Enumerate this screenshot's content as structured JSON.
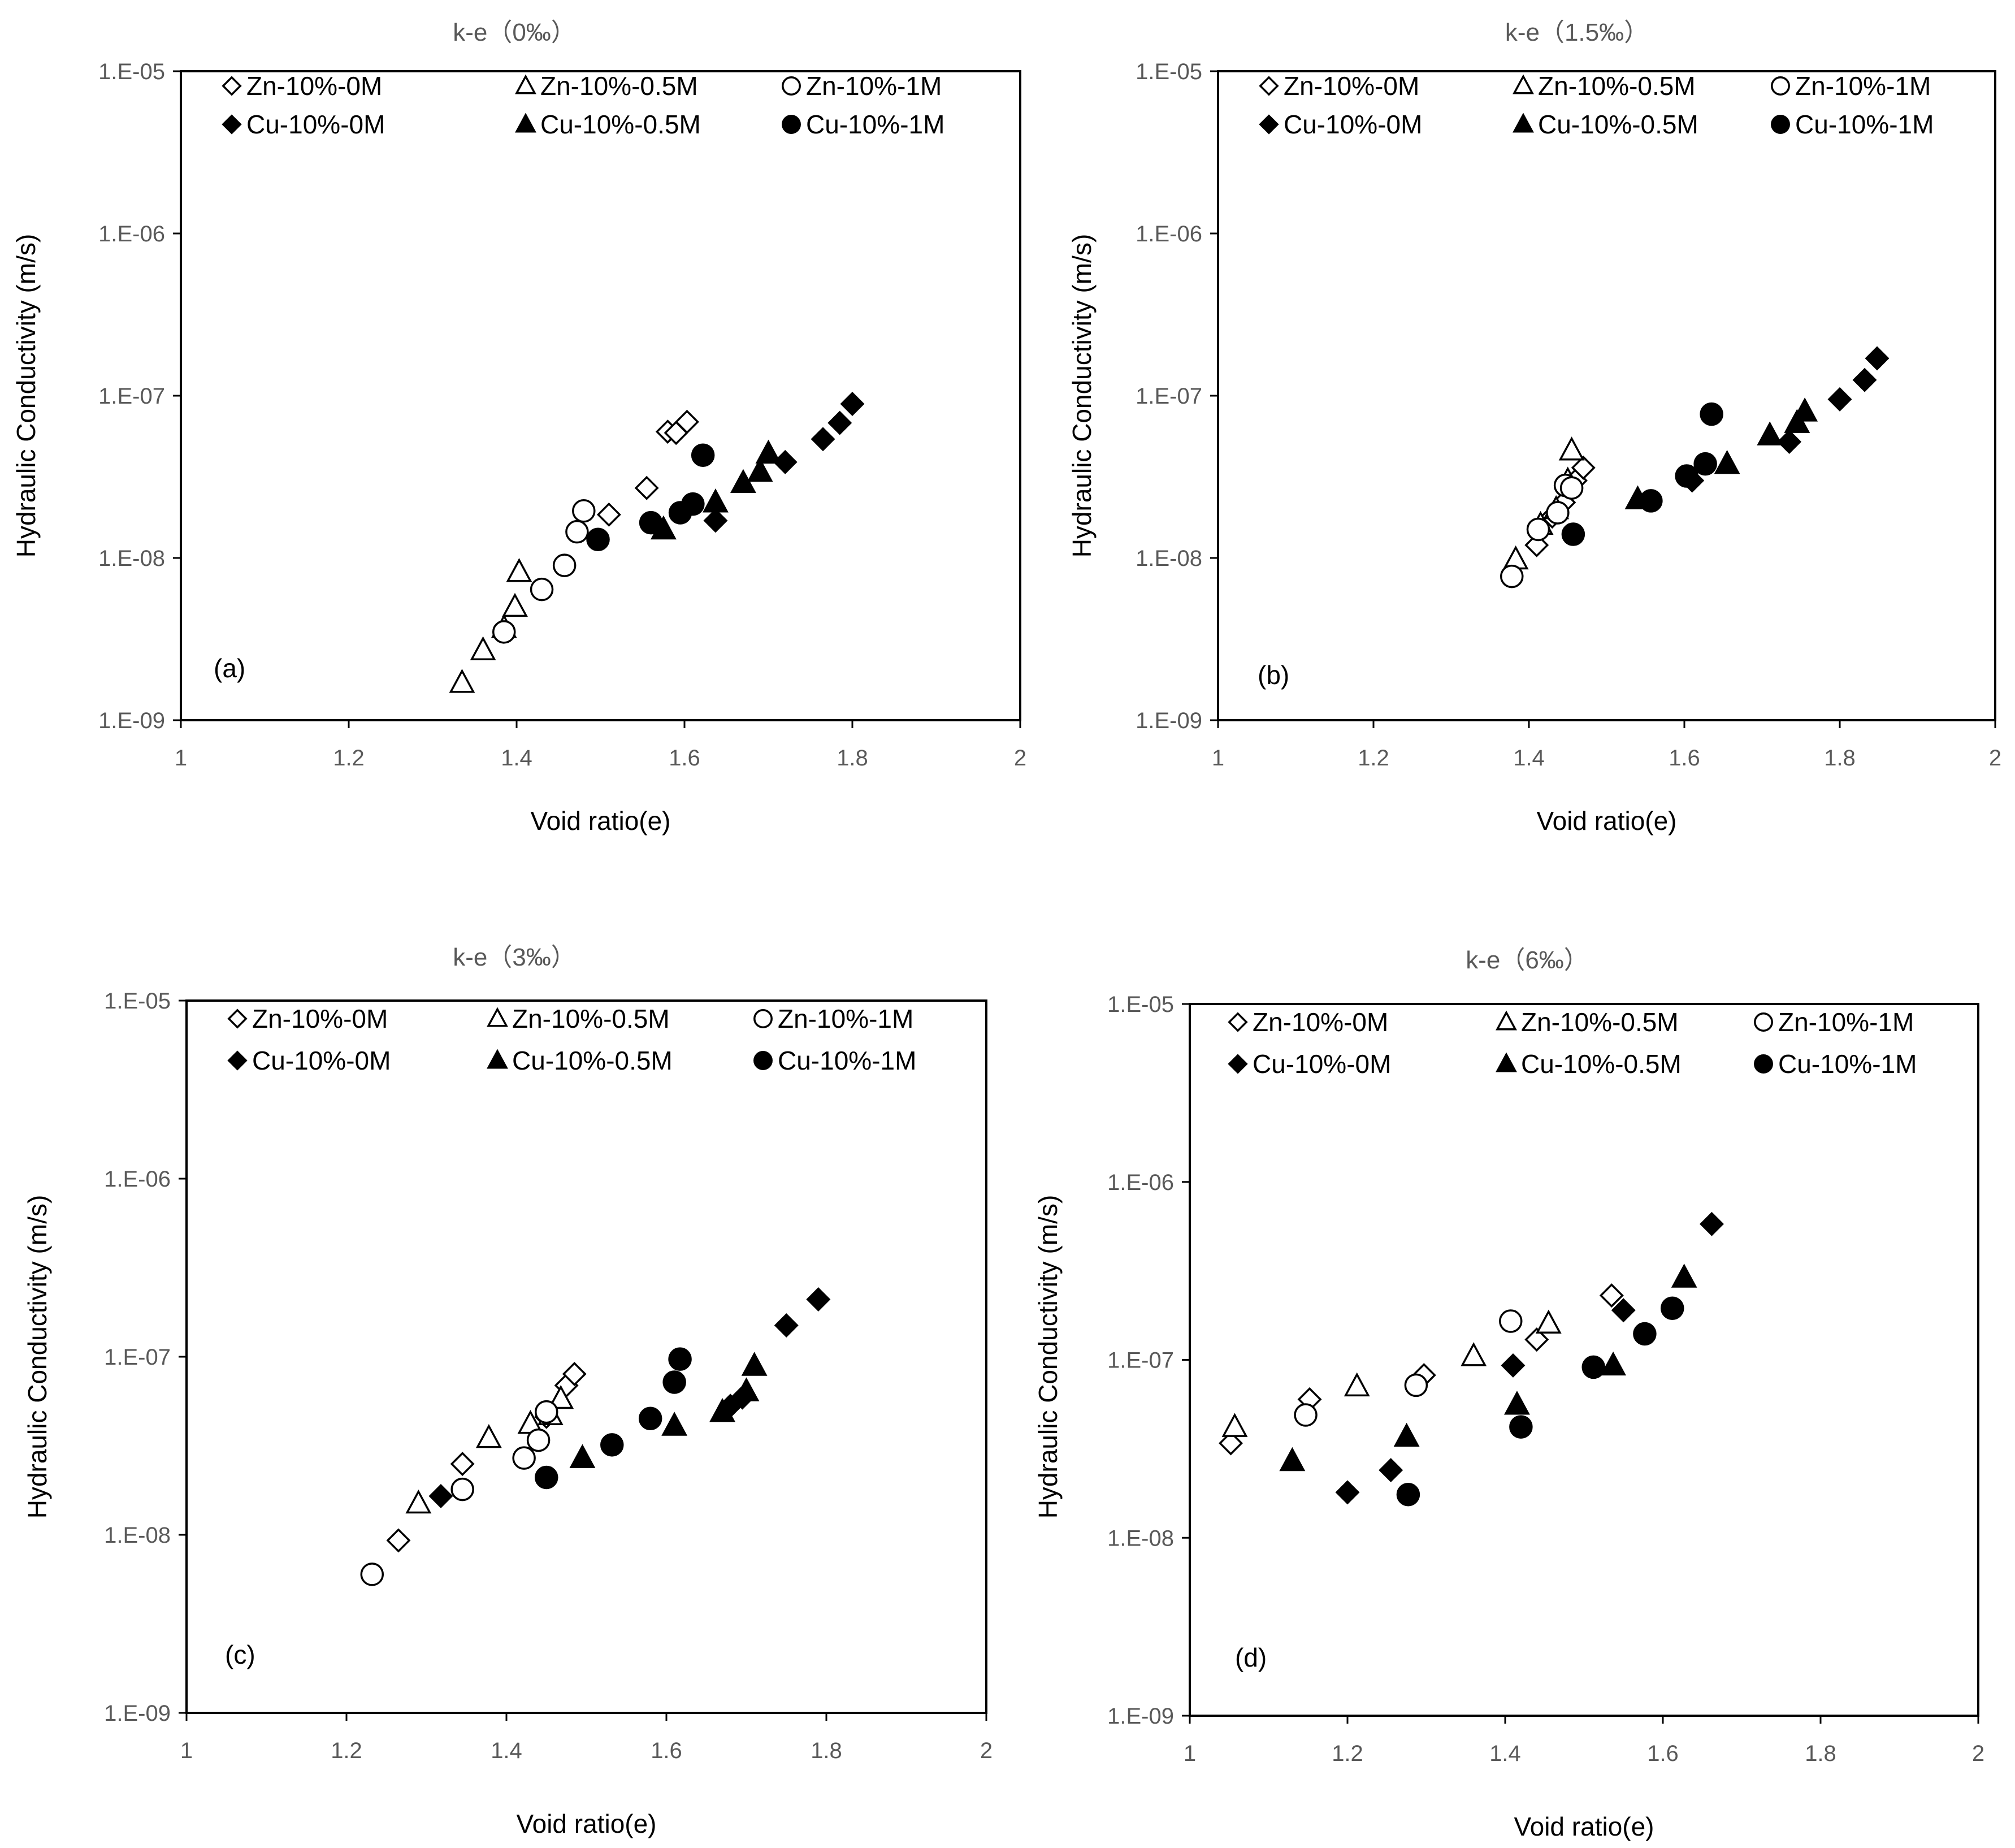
{
  "chart_data": [
    {
      "type": "scatter",
      "title": "k-e（0‰）",
      "panel_label": "(a)",
      "xlabel": "Void ratio(e)",
      "ylabel": "Hydraulic Conductivity (m/s)",
      "x_scale": "linear",
      "y_scale": "log",
      "xlim": [
        1,
        2
      ],
      "ylim": [
        1e-09,
        1e-05
      ],
      "x_ticks": [
        "1",
        "1.2",
        "1.4",
        "1.6",
        "1.8",
        "2"
      ],
      "y_ticks": [
        "1.E-09",
        "1.E-08",
        "1.E-07",
        "1.E-06",
        "1.E-05"
      ],
      "legend_position": "top",
      "series": [
        {
          "name": "Zn-10%-0M",
          "marker": "diamond-open",
          "points": [
            [
              1.51,
              1.85e-08
            ],
            [
              1.555,
              2.7e-08
            ],
            [
              1.58,
              6e-08
            ],
            [
              1.59,
              5.9e-08
            ],
            [
              1.603,
              6.9e-08
            ]
          ]
        },
        {
          "name": "Zn-10%-0.5M",
          "marker": "triangle-open",
          "points": [
            [
              1.335,
              1.7e-09
            ],
            [
              1.36,
              2.7e-09
            ],
            [
              1.385,
              3.7e-09
            ],
            [
              1.398,
              5e-09
            ],
            [
              1.403,
              8.2e-09
            ]
          ]
        },
        {
          "name": "Zn-10%-1M",
          "marker": "circle-open",
          "points": [
            [
              1.385,
              3.5e-09
            ],
            [
              1.43,
              6.4e-09
            ],
            [
              1.457,
              9e-09
            ],
            [
              1.472,
              1.45e-08
            ],
            [
              1.48,
              1.95e-08
            ]
          ]
        },
        {
          "name": "Cu-10%-0M",
          "marker": "diamond-filled",
          "points": [
            [
              1.637,
              1.7e-08
            ],
            [
              1.72,
              3.9e-08
            ],
            [
              1.765,
              5.4e-08
            ],
            [
              1.785,
              6.8e-08
            ],
            [
              1.8,
              8.9e-08
            ]
          ]
        },
        {
          "name": "Cu-10%-0.5M",
          "marker": "triangle-filled",
          "points": [
            [
              1.575,
              1.5e-08
            ],
            [
              1.637,
              2.2e-08
            ],
            [
              1.67,
              2.9e-08
            ],
            [
              1.69,
              3.4e-08
            ],
            [
              1.7,
              4.4e-08
            ]
          ]
        },
        {
          "name": "Cu-10%-1M",
          "marker": "circle-filled",
          "points": [
            [
              1.497,
              1.3e-08
            ],
            [
              1.56,
              1.65e-08
            ],
            [
              1.595,
              1.9e-08
            ],
            [
              1.61,
              2.15e-08
            ],
            [
              1.622,
              4.3e-08
            ]
          ]
        }
      ]
    },
    {
      "type": "scatter",
      "title": "k-e（1.5‰）",
      "panel_label": "(b)",
      "xlabel": "Void ratio(e)",
      "ylabel": "Hydraulic Conductivity (m/s)",
      "x_scale": "linear",
      "y_scale": "log",
      "xlim": [
        1,
        2
      ],
      "ylim": [
        1e-09,
        1e-05
      ],
      "x_ticks": [
        "1",
        "1.2",
        "1.4",
        "1.6",
        "1.8",
        "2"
      ],
      "y_ticks": [
        "1.E-09",
        "1.E-08",
        "1.E-07",
        "1.E-06",
        "1.E-05"
      ],
      "legend_position": "top",
      "series": [
        {
          "name": "Zn-10%-0M",
          "marker": "diamond-open",
          "points": [
            [
              1.41,
              1.2e-08
            ],
            [
              1.43,
              1.8e-08
            ],
            [
              1.445,
              2.2e-08
            ],
            [
              1.46,
              3e-08
            ],
            [
              1.47,
              3.6e-08
            ]
          ]
        },
        {
          "name": "Zn-10%-0.5M",
          "marker": "triangle-open",
          "points": [
            [
              1.383,
              9.8e-09
            ],
            [
              1.415,
              1.6e-08
            ],
            [
              1.435,
              2e-08
            ],
            [
              1.45,
              3e-08
            ],
            [
              1.455,
              4.6e-08
            ]
          ]
        },
        {
          "name": "Zn-10%-1M",
          "marker": "circle-open",
          "points": [
            [
              1.378,
              7.7e-09
            ],
            [
              1.412,
              1.5e-08
            ],
            [
              1.437,
              1.9e-08
            ],
            [
              1.447,
              2.8e-08
            ],
            [
              1.455,
              2.7e-08
            ]
          ]
        },
        {
          "name": "Cu-10%-0M",
          "marker": "diamond-filled",
          "points": [
            [
              1.61,
              3e-08
            ],
            [
              1.735,
              5.2e-08
            ],
            [
              1.8,
              9.5e-08
            ],
            [
              1.832,
              1.25e-07
            ],
            [
              1.848,
              1.7e-07
            ]
          ]
        },
        {
          "name": "Cu-10%-0.5M",
          "marker": "triangle-filled",
          "points": [
            [
              1.54,
              2.3e-08
            ],
            [
              1.655,
              3.8e-08
            ],
            [
              1.71,
              5.7e-08
            ],
            [
              1.745,
              6.8e-08
            ],
            [
              1.755,
              8e-08
            ]
          ]
        },
        {
          "name": "Cu-10%-1M",
          "marker": "circle-filled",
          "points": [
            [
              1.457,
              1.4e-08
            ],
            [
              1.557,
              2.25e-08
            ],
            [
              1.603,
              3.2e-08
            ],
            [
              1.627,
              3.8e-08
            ],
            [
              1.635,
              7.7e-08
            ]
          ]
        }
      ]
    },
    {
      "type": "scatter",
      "title": "k-e（3‰）",
      "panel_label": "(c)",
      "xlabel": "Void ratio(e)",
      "ylabel": "Hydraulic Conductivity (m/s)",
      "x_scale": "linear",
      "y_scale": "log",
      "xlim": [
        1,
        2
      ],
      "ylim": [
        1e-09,
        1e-05
      ],
      "x_ticks": [
        "1",
        "1.2",
        "1.4",
        "1.6",
        "1.8",
        "2"
      ],
      "y_ticks": [
        "1.E-09",
        "1.E-08",
        "1.E-07",
        "1.E-06",
        "1.E-05"
      ],
      "legend_position": "top",
      "series": [
        {
          "name": "Zn-10%-0M",
          "marker": "diamond-open",
          "points": [
            [
              1.265,
              9.3e-09
            ],
            [
              1.345,
              2.5e-08
            ],
            [
              1.45,
              4.6e-08
            ],
            [
              1.475,
              6.9e-08
            ],
            [
              1.485,
              8e-08
            ]
          ]
        },
        {
          "name": "Zn-10%-0.5M",
          "marker": "triangle-open",
          "points": [
            [
              1.29,
              1.5e-08
            ],
            [
              1.378,
              3.5e-08
            ],
            [
              1.43,
              4.2e-08
            ],
            [
              1.455,
              4.7e-08
            ],
            [
              1.468,
              5.8e-08
            ]
          ]
        },
        {
          "name": "Zn-10%-1M",
          "marker": "circle-open",
          "points": [
            [
              1.232,
              6e-09
            ],
            [
              1.345,
              1.8e-08
            ],
            [
              1.422,
              2.7e-08
            ],
            [
              1.44,
              3.4e-08
            ],
            [
              1.45,
              4.9e-08
            ]
          ]
        },
        {
          "name": "Cu-10%-0M",
          "marker": "diamond-filled",
          "points": [
            [
              1.318,
              1.65e-08
            ],
            [
              1.68,
              5.3e-08
            ],
            [
              1.695,
              5.9e-08
            ],
            [
              1.75,
              1.5e-07
            ],
            [
              1.79,
              2.1e-07
            ]
          ]
        },
        {
          "name": "Cu-10%-0.5M",
          "marker": "triangle-filled",
          "points": [
            [
              1.495,
              2.7e-08
            ],
            [
              1.61,
              4.1e-08
            ],
            [
              1.67,
              4.9e-08
            ],
            [
              1.7,
              6.4e-08
            ],
            [
              1.71,
              8.9e-08
            ]
          ]
        },
        {
          "name": "Cu-10%-1M",
          "marker": "circle-filled",
          "points": [
            [
              1.45,
              2.1e-08
            ],
            [
              1.532,
              3.2e-08
            ],
            [
              1.58,
              4.5e-08
            ],
            [
              1.61,
              7.2e-08
            ],
            [
              1.617,
              9.7e-08
            ]
          ]
        }
      ]
    },
    {
      "type": "scatter",
      "title": "k-e（6‰）",
      "panel_label": "(d)",
      "xlabel": "Void ratio(e)",
      "ylabel": "Hydraulic Conductivity (m/s)",
      "x_scale": "linear",
      "y_scale": "log",
      "xlim": [
        1,
        2
      ],
      "ylim": [
        1e-09,
        1e-05
      ],
      "x_ticks": [
        "1",
        "1.2",
        "1.4",
        "1.6",
        "1.8",
        "2"
      ],
      "y_ticks": [
        "1.E-09",
        "1.E-08",
        "1.E-07",
        "1.E-06",
        "1.E-05"
      ],
      "legend_position": "top",
      "series": [
        {
          "name": "Zn-10%-0M",
          "marker": "diamond-open",
          "points": [
            [
              1.052,
              3.4e-08
            ],
            [
              1.152,
              6e-08
            ],
            [
              1.297,
              8.2e-08
            ],
            [
              1.44,
              1.3e-07
            ],
            [
              1.535,
              2.3e-07
            ]
          ]
        },
        {
          "name": "Zn-10%-0.5M",
          "marker": "triangle-open",
          "points": [
            [
              1.057,
              4.2e-08
            ],
            [
              1.212,
              7.1e-08
            ],
            [
              1.36,
              1.05e-07
            ],
            [
              1.455,
              1.6e-07
            ]
          ]
        },
        {
          "name": "Zn-10%-1M",
          "marker": "circle-open",
          "points": [
            [
              1.147,
              4.9e-08
            ],
            [
              1.287,
              7.2e-08
            ],
            [
              1.407,
              1.65e-07
            ]
          ]
        },
        {
          "name": "Cu-10%-0M",
          "marker": "diamond-filled",
          "points": [
            [
              1.2,
              1.8e-08
            ],
            [
              1.255,
              2.4e-08
            ],
            [
              1.41,
              9.3e-08
            ],
            [
              1.55,
              1.9e-07
            ],
            [
              1.662,
              5.8e-07
            ]
          ]
        },
        {
          "name": "Cu-10%-0.5M",
          "marker": "triangle-filled",
          "points": [
            [
              1.13,
              2.7e-08
            ],
            [
              1.275,
              3.7e-08
            ],
            [
              1.415,
              5.6e-08
            ],
            [
              1.537,
              9.3e-08
            ],
            [
              1.627,
              2.9e-07
            ]
          ]
        },
        {
          "name": "Cu-10%-1M",
          "marker": "circle-filled",
          "points": [
            [
              1.277,
              1.75e-08
            ],
            [
              1.42,
              4.2e-08
            ],
            [
              1.512,
              9.1e-08
            ],
            [
              1.577,
              1.4e-07
            ],
            [
              1.612,
              1.95e-07
            ]
          ]
        }
      ]
    }
  ]
}
